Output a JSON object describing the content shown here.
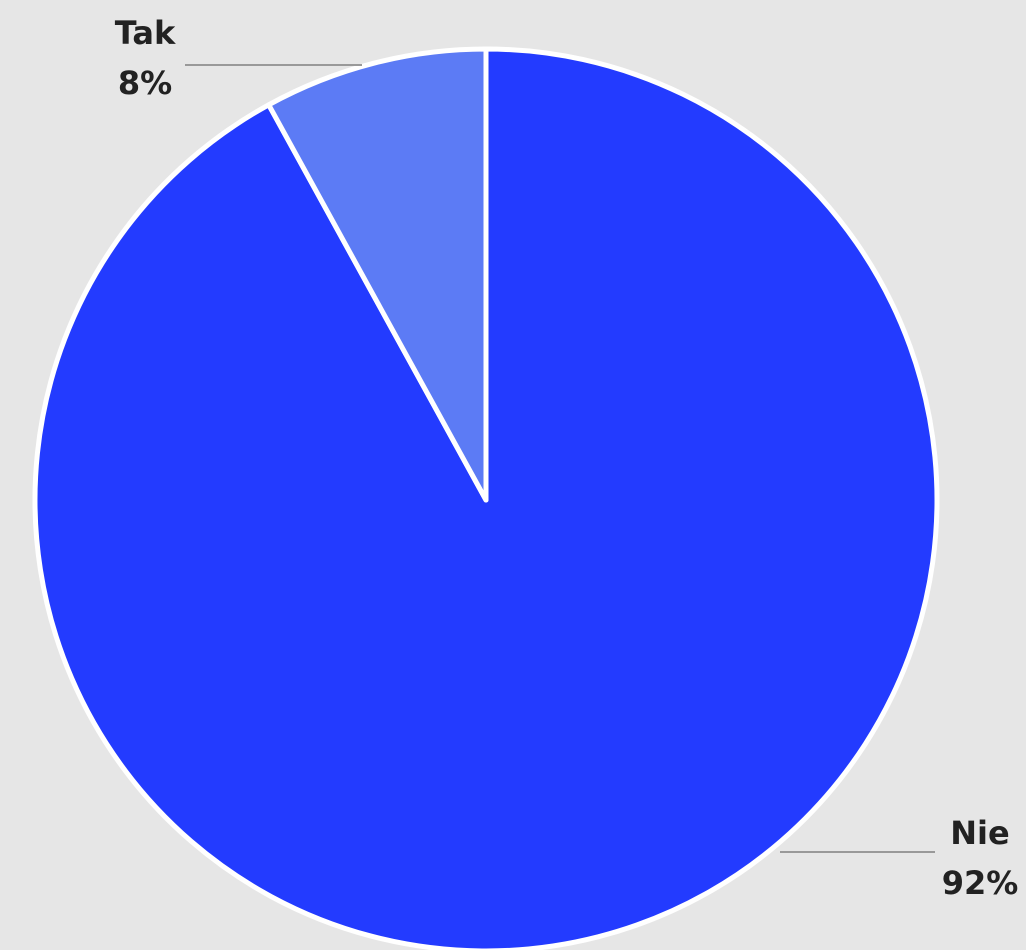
{
  "chart_data": {
    "type": "pie",
    "categories": [
      "Nie",
      "Tak"
    ],
    "values": [
      92,
      8
    ],
    "value_labels": [
      "92%",
      "8%"
    ],
    "colors": [
      "#233bff",
      "#5c7bf5"
    ]
  }
}
